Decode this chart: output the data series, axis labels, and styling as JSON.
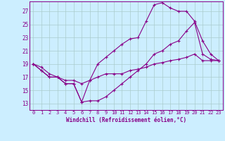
{
  "xlabel": "Windchill (Refroidissement éolien,°C)",
  "background_color": "#cceeff",
  "grid_color": "#aacccc",
  "line_color": "#880088",
  "x_ticks": [
    0,
    1,
    2,
    3,
    4,
    5,
    6,
    7,
    8,
    9,
    10,
    11,
    12,
    13,
    14,
    15,
    16,
    17,
    18,
    19,
    20,
    21,
    22,
    23
  ],
  "y_ticks": [
    13,
    15,
    17,
    19,
    21,
    23,
    25,
    27
  ],
  "xlim": [
    -0.5,
    23.5
  ],
  "ylim": [
    12.0,
    28.5
  ],
  "line1_x": [
    0,
    1,
    2,
    3,
    4,
    5,
    6,
    7,
    8,
    9,
    10,
    11,
    12,
    13,
    14,
    15,
    16,
    17,
    18,
    19,
    20,
    21,
    22,
    23
  ],
  "line1_y": [
    19,
    18,
    17,
    17,
    16,
    16,
    13.2,
    16.5,
    19,
    20,
    21,
    22,
    22.8,
    23,
    25.5,
    28,
    28.3,
    27.5,
    27,
    27,
    25.5,
    22.5,
    20.5,
    19.5
  ],
  "line2_x": [
    0,
    1,
    2,
    3,
    4,
    5,
    6,
    7,
    8,
    9,
    10,
    11,
    12,
    13,
    14,
    15,
    16,
    17,
    18,
    19,
    20,
    21,
    22,
    23
  ],
  "line2_y": [
    19,
    18,
    17,
    17,
    16,
    16,
    13.2,
    13.4,
    13.4,
    14,
    15,
    16,
    17,
    18,
    19,
    20.5,
    21,
    22,
    22.5,
    24,
    25.3,
    20.5,
    19.7,
    19.5
  ],
  "line3_x": [
    0,
    1,
    2,
    3,
    4,
    5,
    6,
    7,
    8,
    9,
    10,
    11,
    12,
    13,
    14,
    15,
    16,
    17,
    18,
    19,
    20,
    21,
    22,
    23
  ],
  "line3_y": [
    19,
    18.5,
    17.5,
    17,
    16.5,
    16.5,
    16,
    16.5,
    17,
    17.5,
    17.5,
    17.5,
    18,
    18.2,
    18.5,
    19,
    19.2,
    19.5,
    19.7,
    20,
    20.5,
    19.5,
    19.5,
    19.5
  ],
  "tick_fontsize": 5,
  "xlabel_fontsize": 5.5,
  "marker_size": 3,
  "line_width": 0.8
}
